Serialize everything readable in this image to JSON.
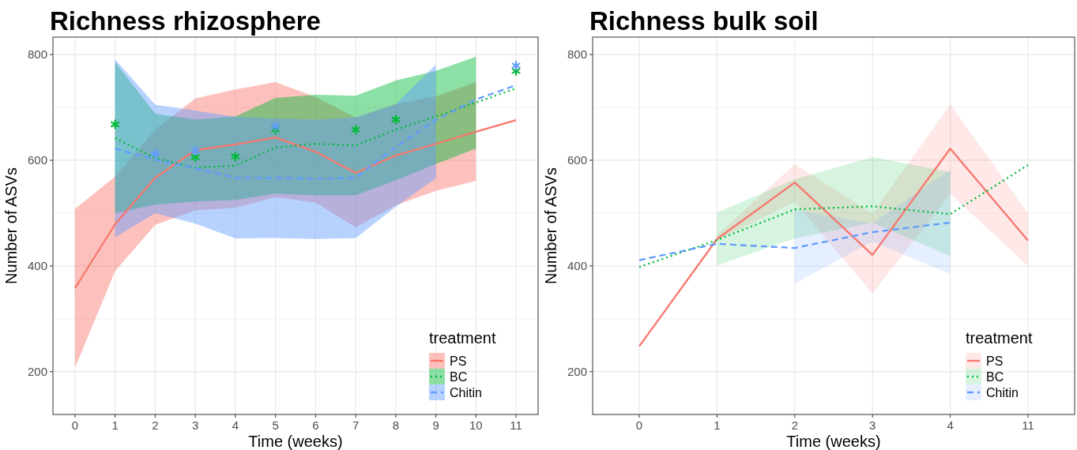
{
  "chart_data": [
    {
      "type": "line",
      "title": "Richness rhizosphere",
      "xlabel": "Time (weeks)",
      "ylabel": "Number of ASVs",
      "legend_title": "treatment",
      "legend": "bottom right",
      "grid": true,
      "xlim": [
        -0.55,
        11.55
      ],
      "xticks": [
        0,
        1,
        2,
        3,
        4,
        5,
        6,
        7,
        8,
        9,
        10,
        11
      ],
      "ylim": [
        119,
        833
      ],
      "yticks": [
        200,
        {
          "value": 300,
          "label": null
        },
        400,
        {
          "value": 500,
          "label": null
        },
        600,
        {
          "value": 700,
          "label": null
        },
        800
      ],
      "series": [
        {
          "name": "PS",
          "color": "#f8766d",
          "line_style": "solid",
          "x": [
            0,
            1,
            2,
            3,
            4,
            5,
            6,
            7,
            8,
            9,
            10,
            11
          ],
          "values": [
            358,
            479,
            567,
            619,
            630,
            643,
            616,
            576,
            609,
            631,
            654,
            676
          ],
          "lower": [
            207,
            390,
            478,
            505,
            510,
            530,
            520,
            473,
            515,
            542,
            561,
            null
          ],
          "upper": [
            508,
            569,
            658,
            717,
            734,
            748,
            720,
            681,
            706,
            721,
            748,
            null
          ]
        },
        {
          "name": "BC",
          "color": "#00ba38",
          "line_style": "dotted",
          "x": [
            1,
            2,
            3,
            4,
            5,
            6,
            7,
            8,
            9,
            10,
            11
          ],
          "values": [
            642,
            604,
            586,
            590,
            624,
            631,
            628,
            658,
            683,
            709,
            736
          ],
          "lower": [
            500,
            516,
            522,
            525,
            537,
            534,
            534,
            562,
            593,
            622,
            null
          ],
          "upper": [
            786,
            688,
            677,
            683,
            718,
            724,
            722,
            751,
            769,
            796,
            null
          ]
        },
        {
          "name": "Chitin",
          "color": "#619cff",
          "line_style": "dashed",
          "x": [
            1,
            2,
            3,
            4,
            5,
            6,
            7,
            8,
            9,
            10,
            11
          ],
          "values": [
            622,
            601,
            585,
            567,
            567,
            565,
            567,
            625,
            676,
            715,
            742
          ],
          "lower": [
            454,
            500,
            480,
            452,
            453,
            451,
            453,
            512,
            566,
            null,
            null
          ],
          "upper": [
            791,
            705,
            694,
            682,
            679,
            677,
            681,
            706,
            781,
            null,
            null
          ]
        },
        {
          "type": "scatter",
          "marker": "cross",
          "color": "#00ba38",
          "x": [
            1,
            3,
            4,
            5,
            7,
            8,
            11
          ],
          "values": [
            668,
            606,
            607,
            658,
            658,
            677,
            769
          ]
        },
        {
          "type": "scatter",
          "marker": "cross",
          "color": "#619cff",
          "x": [
            2,
            3,
            5,
            11
          ],
          "values": [
            612,
            618,
            664,
            779
          ]
        }
      ]
    },
    {
      "type": "line",
      "title": "Richness bulk soil",
      "xlabel": "Time (weeks)",
      "ylabel": "Number of ASVs",
      "legend_title": "treatment",
      "legend": "bottom right",
      "grid": true,
      "categories": [
        "0",
        "1",
        "2",
        "3",
        "4",
        "11"
      ],
      "ylim": [
        119,
        833
      ],
      "yticks": [
        200,
        {
          "value": 300,
          "label": null
        },
        400,
        {
          "value": 500,
          "label": null
        },
        600,
        {
          "value": 700,
          "label": null
        },
        800
      ],
      "series": [
        {
          "name": "PS",
          "color": "#f8766d",
          "line_style": "solid",
          "values": [
            248,
            451,
            558,
            421,
            622,
            448
          ],
          "lower": [
            null,
            449,
            521,
            348,
            536,
            400
          ],
          "upper": [
            null,
            458,
            593,
            499,
            706,
            500
          ]
        },
        {
          "name": "BC",
          "color": "#00ba38",
          "line_style": "dotted",
          "values": [
            398,
            449,
            507,
            513,
            498,
            591
          ],
          "lower": [
            null,
            401,
            452,
            482,
            419,
            null
          ],
          "upper": [
            null,
            501,
            564,
            606,
            578,
            null
          ]
        },
        {
          "name": "Chitin",
          "color": "#619cff",
          "line_style": "dashed",
          "values": [
            411,
            442,
            434,
            464,
            482,
            null
          ],
          "lower": [
            null,
            null,
            367,
            446,
            385,
            null
          ],
          "upper": [
            null,
            null,
            506,
            481,
            582,
            null
          ]
        }
      ]
    }
  ]
}
